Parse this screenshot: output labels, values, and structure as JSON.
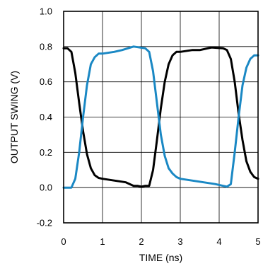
{
  "chart_data": {
    "type": "line",
    "xlabel": "TIME (ns)",
    "ylabel": "OUTPUT SWING (V)",
    "xlim": [
      0,
      5
    ],
    "ylim": [
      -0.2,
      1.0
    ],
    "xticks": [
      "0",
      "1",
      "2",
      "3",
      "4",
      "5"
    ],
    "yticks": [
      "1.0",
      "0.8",
      "0.6",
      "0.4",
      "0.2",
      "0.0",
      "-0.2"
    ],
    "grid": true,
    "series": [
      {
        "color": "#000000",
        "x": [
          0,
          0.1,
          0.2,
          0.3,
          0.4,
          0.5,
          0.6,
          0.7,
          0.8,
          0.9,
          1.0,
          1.3,
          1.6,
          1.8,
          1.9,
          2.0,
          2.1,
          2.2,
          2.3,
          2.4,
          2.5,
          2.6,
          2.7,
          2.8,
          2.9,
          3.0,
          3.3,
          3.5,
          3.8,
          4.1,
          4.2,
          4.3,
          4.4,
          4.5,
          4.6,
          4.7,
          4.8,
          4.9,
          5.0
        ],
        "y": [
          0.79,
          0.79,
          0.77,
          0.65,
          0.48,
          0.32,
          0.19,
          0.11,
          0.07,
          0.055,
          0.05,
          0.04,
          0.03,
          0.01,
          0.01,
          0.005,
          0.01,
          0.01,
          0.1,
          0.27,
          0.45,
          0.6,
          0.7,
          0.75,
          0.77,
          0.77,
          0.78,
          0.78,
          0.795,
          0.79,
          0.78,
          0.73,
          0.6,
          0.42,
          0.27,
          0.15,
          0.09,
          0.06,
          0.05
        ]
      },
      {
        "color": "#1a88c4",
        "x": [
          0,
          0.1,
          0.2,
          0.3,
          0.4,
          0.5,
          0.6,
          0.7,
          0.8,
          0.9,
          1.0,
          1.3,
          1.5,
          1.8,
          2.1,
          2.2,
          2.3,
          2.4,
          2.5,
          2.6,
          2.7,
          2.8,
          2.9,
          3.0,
          3.3,
          3.6,
          3.9,
          4.1,
          4.2,
          4.3,
          4.4,
          4.5,
          4.6,
          4.7,
          4.8,
          4.9,
          5.0
        ],
        "y": [
          0.0,
          0.0,
          0.0,
          0.05,
          0.2,
          0.4,
          0.58,
          0.7,
          0.74,
          0.76,
          0.76,
          0.77,
          0.78,
          0.8,
          0.79,
          0.77,
          0.66,
          0.48,
          0.3,
          0.18,
          0.11,
          0.08,
          0.06,
          0.05,
          0.04,
          0.03,
          0.02,
          0.01,
          0.005,
          0.02,
          0.2,
          0.4,
          0.58,
          0.68,
          0.73,
          0.75,
          0.75
        ]
      }
    ]
  }
}
